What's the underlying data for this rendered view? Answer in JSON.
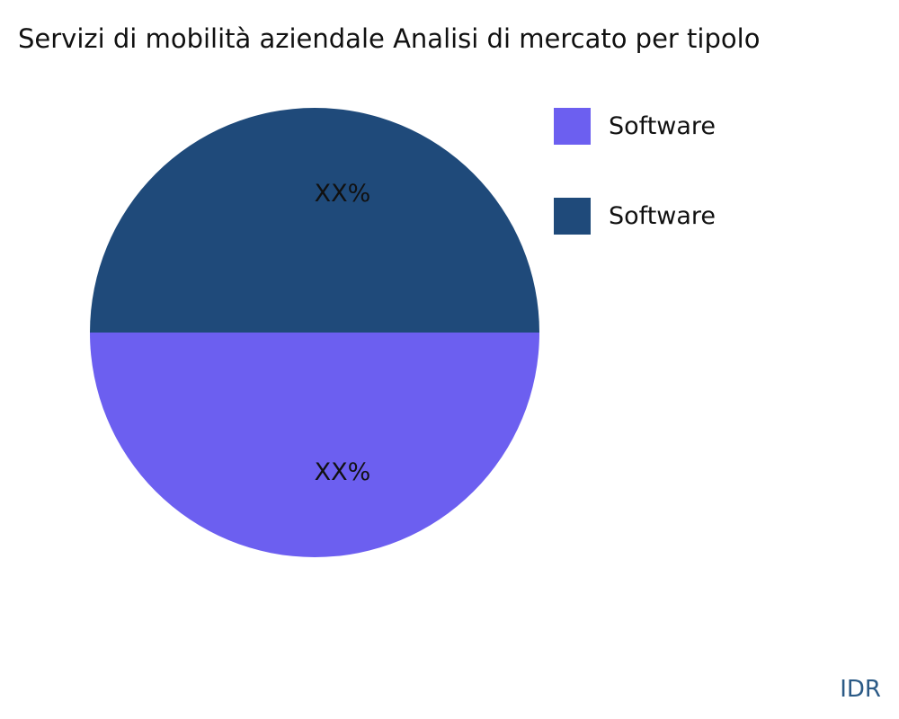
{
  "chart_data": {
    "type": "pie",
    "title": "Servizi di mobilità aziendale Analisi di mercato per tipolo",
    "slices": [
      {
        "label": "Software",
        "value": 50,
        "data_label": "XX%",
        "color": "#6c5ff0"
      },
      {
        "label": "Software",
        "value": 50,
        "data_label": "XX%",
        "color": "#1f4a7a"
      }
    ],
    "legend_placement": "right"
  },
  "brand": "IDR"
}
